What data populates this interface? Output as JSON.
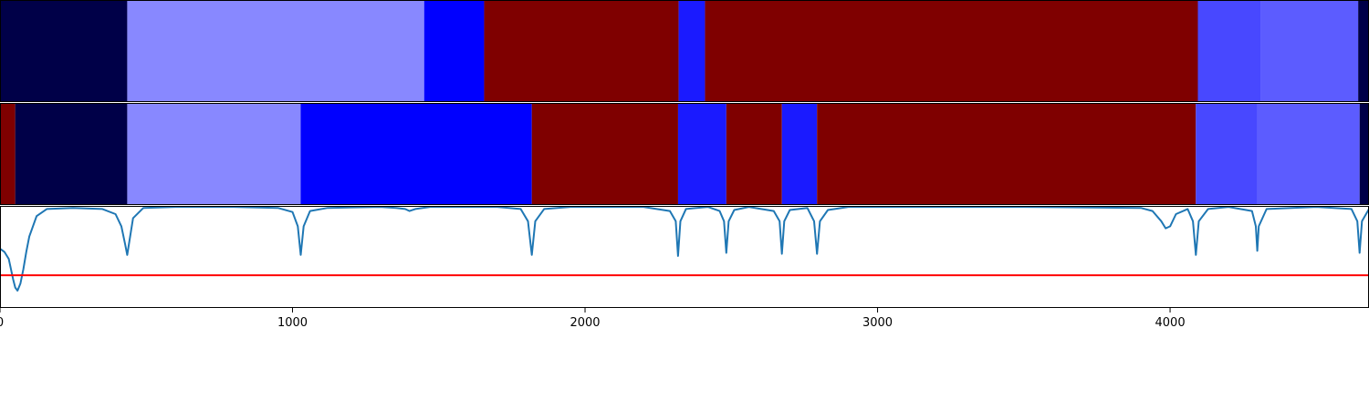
{
  "chart_data": [
    {
      "type": "heatmap",
      "panel": "top",
      "xlim": [
        0,
        4680
      ],
      "segments": [
        {
          "start": 0,
          "end": 435,
          "color": "#000048"
        },
        {
          "start": 435,
          "end": 1450,
          "color": "#8888ff"
        },
        {
          "start": 1450,
          "end": 1655,
          "color": "#0000ff"
        },
        {
          "start": 1655,
          "end": 2320,
          "color": "#7f0000"
        },
        {
          "start": 2320,
          "end": 2410,
          "color": "#1a1aff"
        },
        {
          "start": 2410,
          "end": 4095,
          "color": "#7f0000"
        },
        {
          "start": 4095,
          "end": 4310,
          "color": "#4848ff"
        },
        {
          "start": 4310,
          "end": 4643,
          "color": "#5c5cff"
        },
        {
          "start": 4643,
          "end": 4680,
          "color": "#000048"
        }
      ]
    },
    {
      "type": "heatmap",
      "panel": "middle",
      "xlim": [
        0,
        4680
      ],
      "segments": [
        {
          "start": 0,
          "end": 52,
          "color": "#7f0000"
        },
        {
          "start": 52,
          "end": 435,
          "color": "#000048"
        },
        {
          "start": 435,
          "end": 1028,
          "color": "#8888ff"
        },
        {
          "start": 1028,
          "end": 1818,
          "color": "#0000ff"
        },
        {
          "start": 1818,
          "end": 2318,
          "color": "#7f0000"
        },
        {
          "start": 2318,
          "end": 2483,
          "color": "#1a1aff"
        },
        {
          "start": 2483,
          "end": 2673,
          "color": "#7f0000"
        },
        {
          "start": 2673,
          "end": 2793,
          "color": "#1a1aff"
        },
        {
          "start": 2793,
          "end": 4088,
          "color": "#7f0000"
        },
        {
          "start": 4088,
          "end": 4298,
          "color": "#4848ff"
        },
        {
          "start": 4298,
          "end": 4648,
          "color": "#5c5cff"
        },
        {
          "start": 4648,
          "end": 4680,
          "color": "#000048"
        }
      ]
    },
    {
      "type": "line",
      "panel": "bottom",
      "xlim": [
        0,
        4680
      ],
      "ylim": [
        -1.0,
        0.0
      ],
      "threshold": -0.68,
      "line_color": "#1f77b4",
      "threshold_color": "#ff0000",
      "x_ticks": [
        "0",
        "1000",
        "2000",
        "3000",
        "4000"
      ],
      "x_tick_values": [
        0,
        1000,
        2000,
        3000,
        4000
      ],
      "series": [
        {
          "x": [
            0,
            15,
            30,
            45,
            52,
            60,
            70,
            80,
            90,
            100,
            125,
            160,
            250,
            350,
            395,
            415,
            428,
            435,
            442,
            455,
            490,
            600,
            800,
            950,
            1000,
            1018,
            1028,
            1038,
            1060,
            1120,
            1300,
            1355,
            1385,
            1400,
            1420,
            1470,
            1700,
            1780,
            1805,
            1818,
            1830,
            1860,
            1950,
            2200,
            2290,
            2310,
            2318,
            2326,
            2345,
            2420,
            2460,
            2475,
            2483,
            2491,
            2510,
            2560,
            2645,
            2665,
            2673,
            2681,
            2700,
            2760,
            2783,
            2793,
            2803,
            2830,
            2900,
            3500,
            3900,
            3940,
            3970,
            3985,
            4000,
            4020,
            4060,
            4078,
            4088,
            4098,
            4130,
            4200,
            4280,
            4293,
            4298,
            4303,
            4330,
            4500,
            4620,
            4640,
            4648,
            4656,
            4680
          ],
          "y": [
            -0.42,
            -0.45,
            -0.52,
            -0.72,
            -0.8,
            -0.83,
            -0.76,
            -0.62,
            -0.45,
            -0.3,
            -0.1,
            -0.03,
            -0.02,
            -0.03,
            -0.08,
            -0.2,
            -0.38,
            -0.48,
            -0.35,
            -0.12,
            -0.02,
            -0.01,
            -0.01,
            -0.02,
            -0.06,
            -0.2,
            -0.48,
            -0.2,
            -0.05,
            -0.02,
            -0.01,
            -0.02,
            -0.03,
            -0.05,
            -0.03,
            -0.01,
            -0.01,
            -0.03,
            -0.15,
            -0.48,
            -0.15,
            -0.03,
            -0.01,
            -0.01,
            -0.05,
            -0.15,
            -0.49,
            -0.15,
            -0.03,
            -0.01,
            -0.05,
            -0.15,
            -0.46,
            -0.15,
            -0.04,
            -0.01,
            -0.05,
            -0.15,
            -0.47,
            -0.15,
            -0.04,
            -0.02,
            -0.15,
            -0.47,
            -0.15,
            -0.04,
            -0.01,
            -0.01,
            -0.02,
            -0.05,
            -0.15,
            -0.22,
            -0.2,
            -0.08,
            -0.03,
            -0.15,
            -0.48,
            -0.15,
            -0.03,
            -0.01,
            -0.05,
            -0.2,
            -0.44,
            -0.2,
            -0.03,
            -0.01,
            -0.03,
            -0.15,
            -0.46,
            -0.15,
            -0.03
          ]
        }
      ]
    }
  ]
}
